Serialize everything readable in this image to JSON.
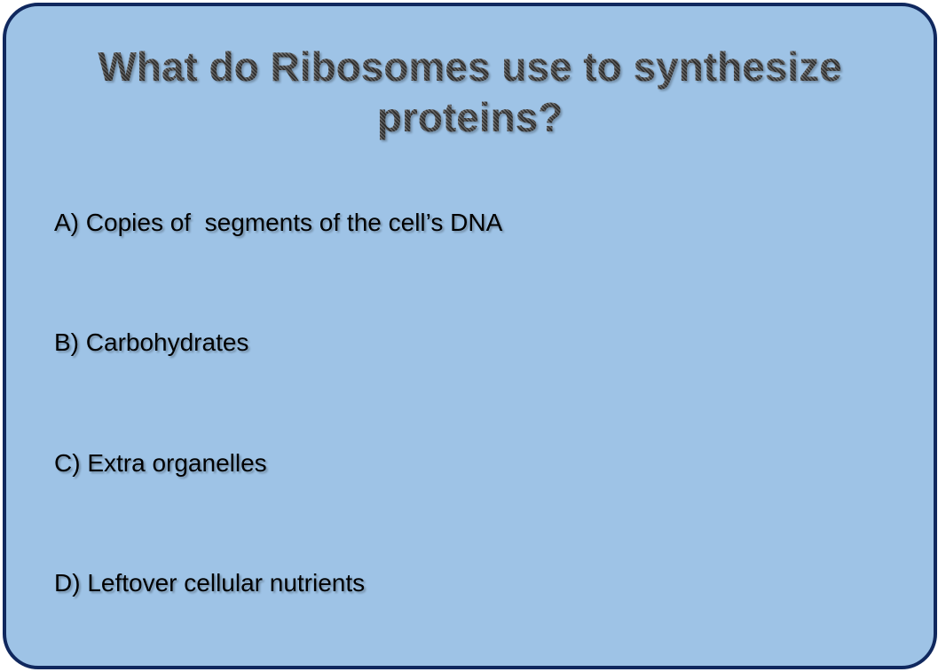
{
  "slide": {
    "title": "What do Ribosomes use to synthesize proteins?",
    "options": [
      "A) Copies of  segments of the cell’s DNA",
      "B) Carbohydrates",
      "C) Extra organelles",
      "D) Leftover cellular nutrients"
    ]
  },
  "colors": {
    "background": "#9ec3e6",
    "border": "#10285e",
    "title_text": "#4a4a4a",
    "option_text": "#000000"
  }
}
